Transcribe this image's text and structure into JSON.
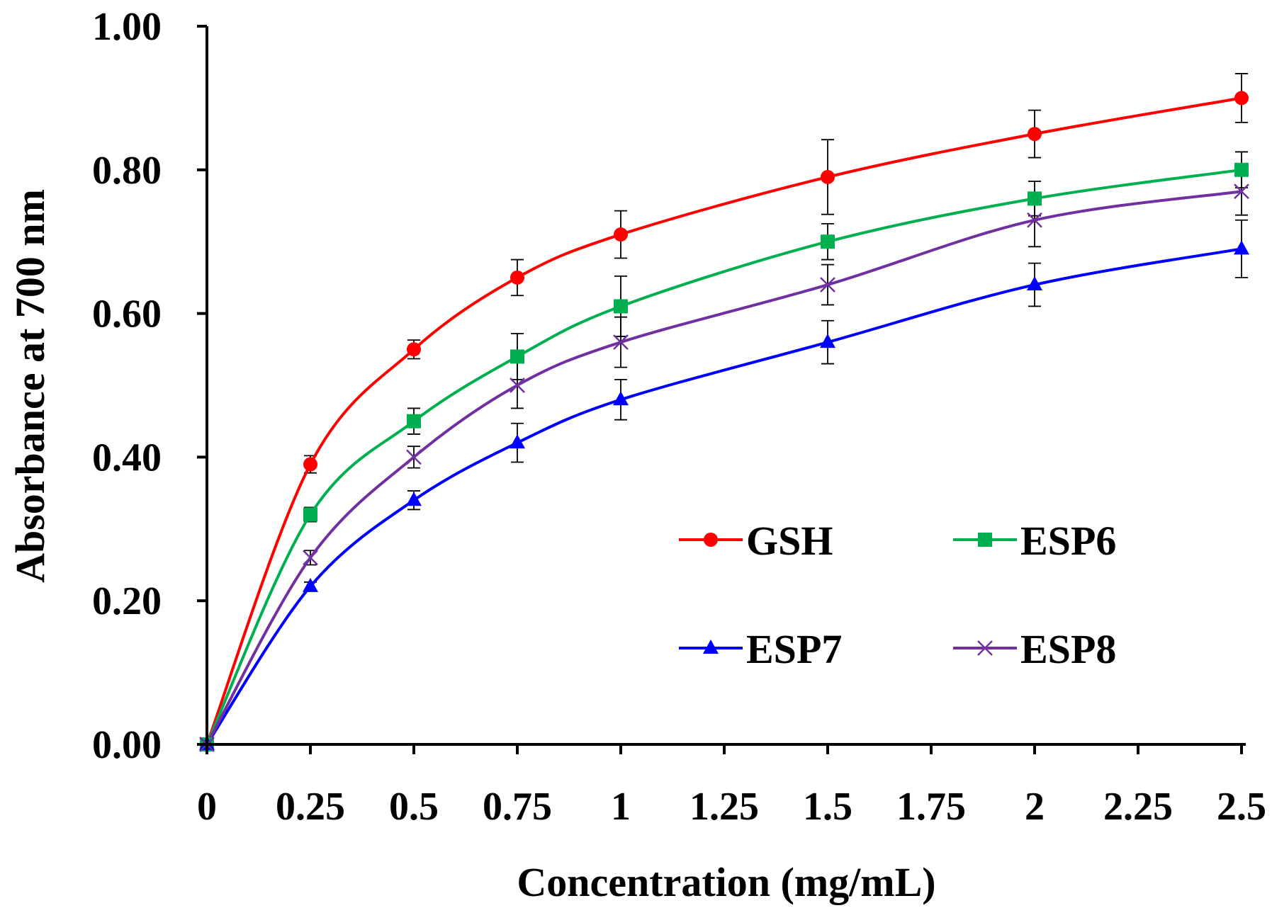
{
  "chart_data": {
    "type": "line",
    "title": "",
    "xlabel": "Concentration (mg/mL)",
    "ylabel": "Absorbance at 700 nm",
    "xlim": [
      0,
      2.5
    ],
    "ylim": [
      0,
      1.0
    ],
    "x_ticks": [
      0,
      0.25,
      0.5,
      0.75,
      1,
      1.25,
      1.5,
      1.75,
      2,
      2.25,
      2.5
    ],
    "x_tick_labels": [
      "0",
      "0.25",
      "0.5",
      "0.75",
      "1",
      "1.25",
      "1.5",
      "1.75",
      "2",
      "2.25",
      "2.5"
    ],
    "y_ticks": [
      0,
      0.2,
      0.4,
      0.6,
      0.8,
      1.0
    ],
    "y_tick_labels": [
      "0.00",
      "0.20",
      "0.40",
      "0.60",
      "0.80",
      "1.00"
    ],
    "grid": false,
    "legend_position": "center-right",
    "x": [
      0,
      0.25,
      0.5,
      0.75,
      1,
      1.5,
      2,
      2.5
    ],
    "series": [
      {
        "name": "GSH",
        "color": "#ff0000",
        "marker": "circle",
        "values": [
          0,
          0.39,
          0.55,
          0.65,
          0.71,
          0.79,
          0.85,
          0.9
        ],
        "errors": [
          0,
          0.012,
          0.013,
          0.025,
          0.033,
          0.052,
          0.033,
          0.034
        ]
      },
      {
        "name": "ESP6",
        "color": "#00b050",
        "marker": "square",
        "values": [
          0,
          0.32,
          0.45,
          0.54,
          0.61,
          0.7,
          0.76,
          0.8
        ],
        "errors": [
          0,
          0.01,
          0.018,
          0.032,
          0.042,
          0.025,
          0.024,
          0.025
        ]
      },
      {
        "name": "ESP7",
        "color": "#0000ff",
        "marker": "triangle",
        "values": [
          0,
          0.22,
          0.34,
          0.42,
          0.48,
          0.56,
          0.64,
          0.69
        ],
        "errors": [
          0,
          0.006,
          0.013,
          0.027,
          0.028,
          0.03,
          0.03,
          0.04
        ]
      },
      {
        "name": "ESP8",
        "color": "#7030a0",
        "marker": "x",
        "values": [
          0,
          0.26,
          0.4,
          0.5,
          0.56,
          0.64,
          0.73,
          0.77
        ],
        "errors": [
          0,
          0.01,
          0.015,
          0.032,
          0.035,
          0.028,
          0.037,
          0.033
        ]
      }
    ]
  }
}
